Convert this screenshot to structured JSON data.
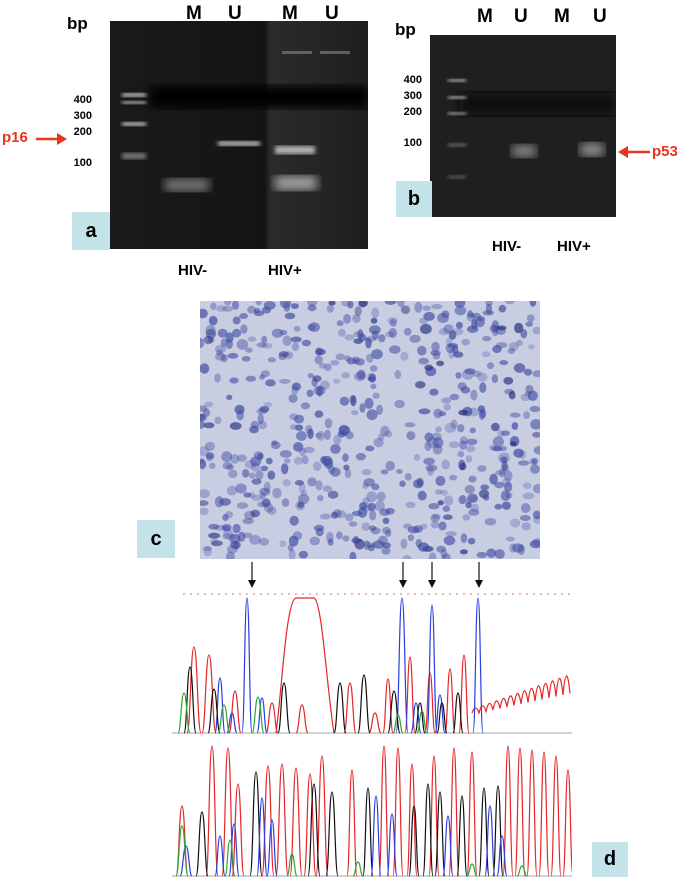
{
  "panel_a": {
    "unit": "bp",
    "lanes": [
      "M",
      "U",
      "M",
      "U"
    ],
    "ladder": [
      "400",
      "300",
      "200",
      "100"
    ],
    "marker": "p16",
    "groups": [
      "HIV-",
      "HIV+"
    ],
    "tag": "a"
  },
  "panel_b": {
    "unit": "bp",
    "lanes": [
      "M",
      "U",
      "M",
      "U"
    ],
    "ladder": [
      "400",
      "300",
      "200",
      "100"
    ],
    "marker": "p53",
    "groups": [
      "HIV-",
      "HIV+"
    ],
    "tag": "b"
  },
  "panel_c": {
    "tag": "c"
  },
  "panel_d": {
    "tag": "d"
  },
  "colors": {
    "gel": "#161617",
    "band": "#d8d8d8",
    "arrow": "#e8331f",
    "tag_bg": "#c4e3e8",
    "tissue_bg": "#c9cde2",
    "nuclei": "#3d4aa0",
    "trace_red": "#e5262a",
    "trace_blue": "#2a3fe0",
    "trace_black": "#111111",
    "trace_green": "#2fa63a"
  }
}
